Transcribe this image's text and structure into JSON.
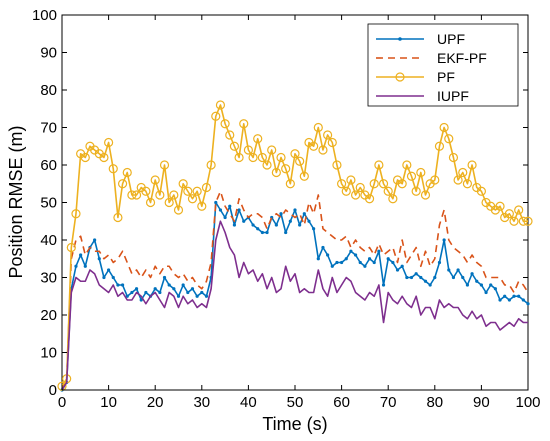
{
  "chart_data": {
    "type": "line",
    "title": "",
    "xlabel": "Time (s)",
    "ylabel": "Position RMSE (m)",
    "xlim": [
      0,
      100
    ],
    "ylim": [
      0,
      100
    ],
    "xticks": [
      0,
      10,
      20,
      30,
      40,
      50,
      60,
      70,
      80,
      90,
      100
    ],
    "yticks": [
      0,
      10,
      20,
      30,
      40,
      50,
      60,
      70,
      80,
      90,
      100
    ],
    "grid": false,
    "legend_position": "top-right",
    "x": [
      0,
      1,
      2,
      3,
      4,
      5,
      6,
      7,
      8,
      9,
      10,
      11,
      12,
      13,
      14,
      15,
      16,
      17,
      18,
      19,
      20,
      21,
      22,
      23,
      24,
      25,
      26,
      27,
      28,
      29,
      30,
      31,
      32,
      33,
      34,
      35,
      36,
      37,
      38,
      39,
      40,
      41,
      42,
      43,
      44,
      45,
      46,
      47,
      48,
      49,
      50,
      51,
      52,
      53,
      54,
      55,
      56,
      57,
      58,
      59,
      60,
      61,
      62,
      63,
      64,
      65,
      66,
      67,
      68,
      69,
      70,
      71,
      72,
      73,
      74,
      75,
      76,
      77,
      78,
      79,
      80,
      81,
      82,
      83,
      84,
      85,
      86,
      87,
      88,
      89,
      90,
      91,
      92,
      93,
      94,
      95,
      96,
      97,
      98,
      99,
      100
    ],
    "series": [
      {
        "name": "UPF",
        "color": "#0072BD",
        "style": "solid-dot-markers",
        "values": [
          0,
          2,
          27,
          33,
          36,
          33,
          38,
          40,
          35,
          30,
          32,
          30,
          28,
          28,
          25,
          26,
          27,
          24,
          26,
          25,
          27,
          26,
          30,
          28,
          27,
          25,
          28,
          26,
          27,
          25,
          26,
          25,
          30,
          50,
          48,
          46,
          49,
          44,
          48,
          45,
          46,
          44,
          43,
          42,
          42,
          46,
          44,
          47,
          42,
          45,
          48,
          44,
          47,
          45,
          43,
          35,
          38,
          36,
          33,
          34,
          34,
          35,
          37,
          36,
          34,
          33,
          35,
          34,
          37,
          28,
          35,
          34,
          32,
          33,
          30,
          30,
          31,
          30,
          29,
          28,
          30,
          34,
          40,
          32,
          30,
          32,
          30,
          28,
          31,
          29,
          28,
          26,
          28,
          27,
          24,
          25,
          24,
          25,
          25,
          24,
          23
        ]
      },
      {
        "name": "EKF-PF",
        "color": "#D95319",
        "style": "dashed",
        "values": [
          0,
          3,
          35,
          40,
          41,
          36,
          38,
          37,
          37,
          35,
          36,
          34,
          35,
          37,
          34,
          31,
          32,
          30,
          32,
          30,
          33,
          31,
          33,
          33,
          31,
          30,
          31,
          29,
          30,
          28,
          27,
          29,
          34,
          50,
          53,
          49,
          47,
          45,
          51,
          48,
          46,
          47,
          47,
          46,
          43,
          46,
          47,
          46,
          48,
          47,
          46,
          47,
          44,
          50,
          47,
          52,
          43,
          42,
          41,
          40,
          40,
          41,
          38,
          40,
          38,
          37,
          38,
          36,
          39,
          36,
          37,
          38,
          34,
          40,
          34,
          36,
          38,
          33,
          37,
          33,
          35,
          44,
          48,
          40,
          38,
          37,
          36,
          34,
          36,
          34,
          33,
          30,
          30,
          30,
          30,
          28,
          28,
          26,
          29,
          28,
          26
        ]
      },
      {
        "name": "PF",
        "color": "#EDB120",
        "style": "solid-circle-markers",
        "values": [
          1,
          3,
          38,
          47,
          63,
          62,
          65,
          64,
          63,
          62,
          66,
          59,
          46,
          55,
          58,
          52,
          52,
          54,
          53,
          50,
          56,
          52,
          60,
          50,
          52,
          48,
          55,
          53,
          51,
          53,
          49,
          54,
          60,
          73,
          76,
          71,
          68,
          65,
          62,
          71,
          64,
          62,
          67,
          62,
          60,
          64,
          58,
          62,
          59,
          55,
          63,
          61,
          57,
          66,
          65,
          70,
          64,
          68,
          66,
          60,
          55,
          53,
          56,
          52,
          54,
          52,
          51,
          55,
          60,
          55,
          53,
          51,
          56,
          55,
          60,
          57,
          53,
          58,
          52,
          55,
          56,
          65,
          70,
          67,
          62,
          56,
          58,
          55,
          60,
          54,
          53,
          50,
          49,
          48,
          49,
          46,
          47,
          45,
          48,
          45,
          45
        ]
      },
      {
        "name": "IUPF",
        "color": "#7E2F8E",
        "style": "solid",
        "values": [
          0,
          2,
          26,
          30,
          29,
          29,
          32,
          31,
          28,
          27,
          26,
          28,
          25,
          26,
          24,
          24,
          26,
          25,
          23,
          25,
          26,
          24,
          22,
          26,
          25,
          22,
          25,
          23,
          24,
          22,
          23,
          22,
          27,
          40,
          45,
          42,
          38,
          36,
          30,
          34,
          31,
          32,
          29,
          31,
          27,
          30,
          26,
          27,
          33,
          29,
          31,
          26,
          27,
          26,
          26,
          32,
          27,
          25,
          30,
          26,
          28,
          30,
          29,
          26,
          25,
          24,
          26,
          25,
          28,
          18,
          26,
          24,
          23,
          25,
          23,
          22,
          25,
          20,
          22,
          22,
          19,
          24,
          22,
          23,
          22,
          22,
          20,
          19,
          21,
          19,
          20,
          17,
          18,
          18,
          16,
          17,
          18,
          17,
          19,
          18,
          18
        ]
      }
    ]
  }
}
